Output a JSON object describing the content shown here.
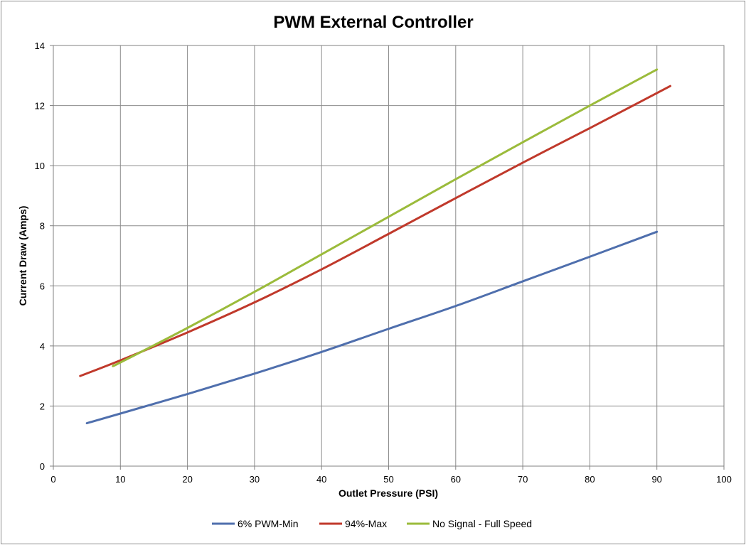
{
  "chart_data": {
    "type": "line",
    "title": "PWM External Controller",
    "xlabel": "Outlet Pressure (PSI)",
    "ylabel": "Current Draw (Amps)",
    "xlim": [
      0,
      100
    ],
    "ylim": [
      0,
      14
    ],
    "xticks": [
      0,
      10,
      20,
      30,
      40,
      50,
      60,
      70,
      80,
      90,
      100
    ],
    "yticks": [
      0,
      2,
      4,
      6,
      8,
      10,
      12,
      14
    ],
    "grid": true,
    "legend_position": "bottom",
    "series": [
      {
        "name": "6% PWM-Min",
        "color": "#4f6fad",
        "points": [
          [
            5,
            1.43
          ],
          [
            10,
            1.75
          ],
          [
            20,
            2.4
          ],
          [
            30,
            3.08
          ],
          [
            40,
            3.8
          ],
          [
            50,
            4.57
          ],
          [
            60,
            5.33
          ],
          [
            70,
            6.15
          ],
          [
            80,
            6.97
          ],
          [
            90,
            7.8
          ]
        ]
      },
      {
        "name": "94%-Max",
        "color": "#c0392b",
        "points": [
          [
            4,
            3.0
          ],
          [
            10,
            3.52
          ],
          [
            20,
            4.45
          ],
          [
            30,
            5.45
          ],
          [
            40,
            6.55
          ],
          [
            50,
            7.73
          ],
          [
            60,
            8.92
          ],
          [
            70,
            10.1
          ],
          [
            80,
            11.25
          ],
          [
            92,
            12.65
          ]
        ]
      },
      {
        "name": "No Signal - Full Speed",
        "color": "#9bbb3b",
        "points": [
          [
            9,
            3.35
          ],
          [
            10,
            3.45
          ],
          [
            20,
            4.6
          ],
          [
            30,
            5.8
          ],
          [
            40,
            7.05
          ],
          [
            50,
            8.3
          ],
          [
            60,
            9.55
          ],
          [
            70,
            10.78
          ],
          [
            80,
            12.0
          ],
          [
            90,
            13.2
          ]
        ]
      }
    ]
  }
}
